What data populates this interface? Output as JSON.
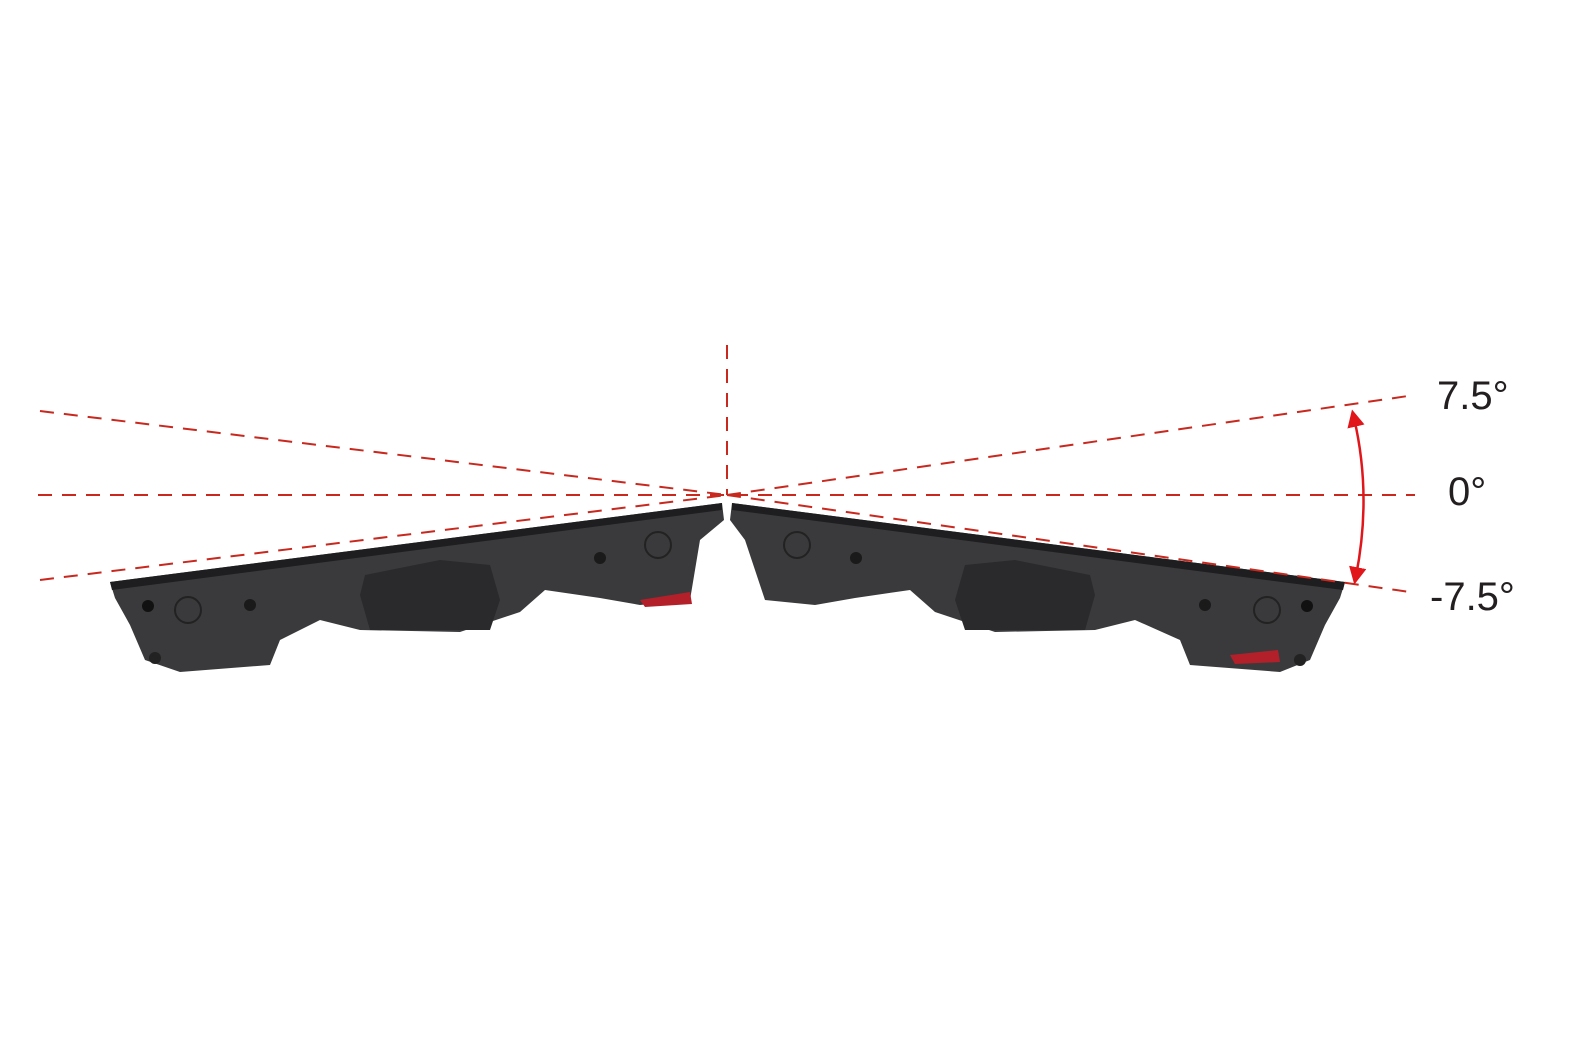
{
  "diagram": {
    "angle_labels": {
      "upper": "7.5°",
      "zero": "0°",
      "lower": "-7.5°"
    },
    "angle_range_degrees": [
      -7.5,
      7.5
    ],
    "colors": {
      "guide_line": "#c8281e",
      "arrow": "#e0161b",
      "panel": "#3a3a3c",
      "panel_dark": "#222224",
      "latch": "#b3202a",
      "text": "#231f20"
    }
  }
}
